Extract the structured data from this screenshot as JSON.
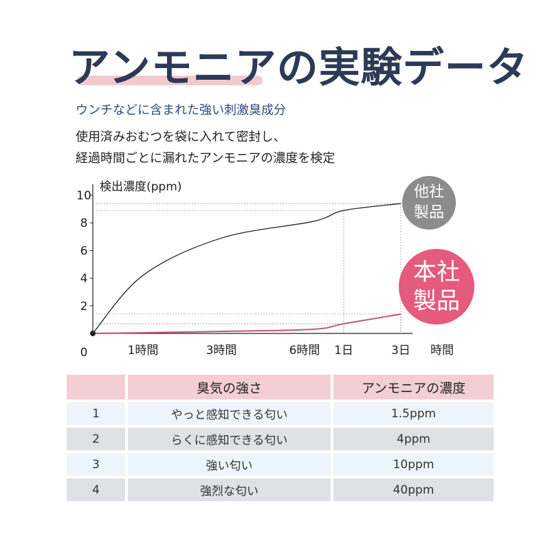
{
  "header": {
    "title": "アンモニアの実験データ",
    "subtitle": "ウンチなどに含まれた強い刺激臭成分",
    "description_line1": "使用済みおむつを袋に入れて密封し、",
    "description_line2": "経過時間ごとに漏れたアンモニアの濃度を検定"
  },
  "badges": {
    "other_line1": "他社",
    "other_line2": "製品",
    "ours_line1": "本社",
    "ours_line2": "製品"
  },
  "colors": {
    "other_line": "#222222",
    "ours_line": "#c0547a",
    "badge_other": "#8c8c8c",
    "badge_ours": "#e45b7e",
    "title": "#2c3a55",
    "header_row": "#f3cfd5"
  },
  "chart_data": {
    "type": "line",
    "ylabel": "検出濃度(ppm)",
    "xlabel": "時間",
    "ylim": [
      0,
      10
    ],
    "y_ticks": [
      "0",
      "2",
      "4",
      "6",
      "8",
      "10"
    ],
    "x_ticks": [
      {
        "label": "1時間",
        "t": 1
      },
      {
        "label": "3時間",
        "t": 3
      },
      {
        "label": "6時間",
        "t": 6
      },
      {
        "label": "1日",
        "t": 24
      },
      {
        "label": "3日",
        "t": 72
      }
    ],
    "series": [
      {
        "name": "他社製品",
        "x": [
          0,
          1,
          3,
          6,
          24,
          72
        ],
        "values": [
          0,
          4.2,
          6.9,
          8.1,
          8.9,
          9.4
        ]
      },
      {
        "name": "本社製品",
        "x": [
          0,
          1,
          3,
          6,
          24,
          72
        ],
        "values": [
          0,
          0.05,
          0.15,
          0.3,
          0.7,
          1.4
        ]
      }
    ]
  },
  "table": {
    "headers": [
      "",
      "臭気の強さ",
      "アンモニアの濃度"
    ],
    "rows": [
      {
        "no": "1",
        "level": "やっと感知できる匂い",
        "conc": "1.5ppm"
      },
      {
        "no": "2",
        "level": "らくに感知できる匂い",
        "conc": "4ppm"
      },
      {
        "no": "3",
        "level": "強い匂い",
        "conc": "10ppm"
      },
      {
        "no": "4",
        "level": "強烈な匂い",
        "conc": "40ppm"
      }
    ]
  }
}
